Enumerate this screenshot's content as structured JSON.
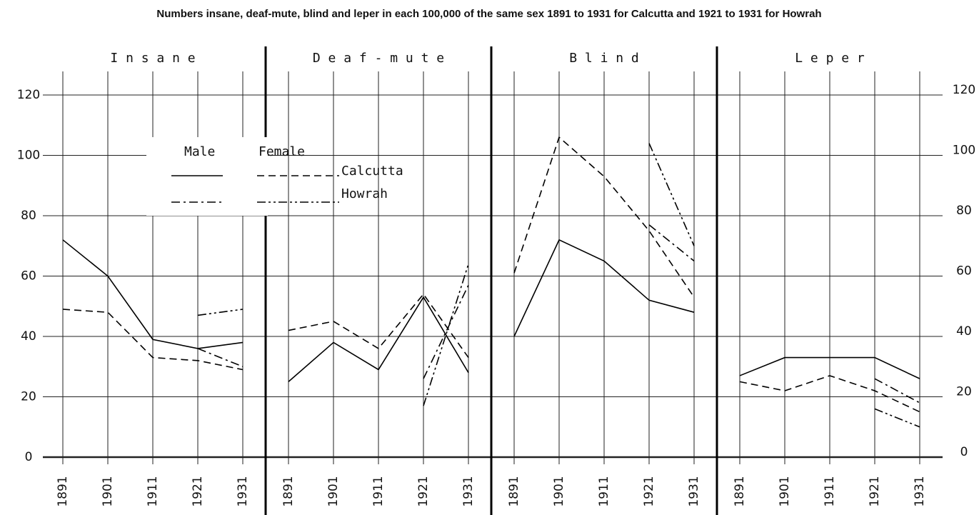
{
  "chart_data": {
    "type": "line",
    "title": "Numbers insane, deaf-mute, blind and leper in each 100,000 of the same sex 1891 to 1931 for Calcutta and 1921 to 1931 for Howrah",
    "categories": [
      "1891",
      "1901",
      "1911",
      "1921",
      "1931"
    ],
    "ylim": [
      0,
      129
    ],
    "yticks": [
      0,
      20,
      40,
      60,
      80,
      100,
      120
    ],
    "color": "#000000",
    "grid": true,
    "legend": {
      "headers": [
        "Male",
        "Female"
      ],
      "rows": [
        {
          "label": "Calcutta",
          "dashes": [
            "solid",
            "dashed"
          ]
        },
        {
          "label": "Howrah",
          "dashes": [
            "dashdot",
            "dashdotdot"
          ]
        }
      ]
    },
    "panels": [
      {
        "title": "I n s a n e",
        "series": [
          {
            "dash": "solid",
            "values": [
              72,
              60,
              39,
              36,
              38
            ]
          },
          {
            "dash": "dashed",
            "values": [
              49,
              48,
              33,
              32,
              29
            ]
          },
          {
            "dash": "dashdot",
            "values": [
              null,
              null,
              null,
              36,
              30
            ]
          },
          {
            "dash": "dashdotdot",
            "values": [
              null,
              null,
              null,
              47,
              49
            ]
          }
        ]
      },
      {
        "title": "D e a f - m u t e",
        "series": [
          {
            "dash": "solid",
            "values": [
              25,
              38,
              29,
              53,
              28
            ]
          },
          {
            "dash": "dashed",
            "values": [
              42,
              45,
              36,
              54,
              33
            ]
          },
          {
            "dash": "dashdot",
            "values": [
              null,
              null,
              null,
              26,
              57
            ]
          },
          {
            "dash": "dashdotdot",
            "values": [
              null,
              null,
              null,
              17,
              64
            ]
          }
        ]
      },
      {
        "title": "B l i n d",
        "series": [
          {
            "dash": "solid",
            "values": [
              40,
              72,
              65,
              52,
              48
            ]
          },
          {
            "dash": "dashed",
            "values": [
              61,
              106,
              93,
              75,
              53
            ]
          },
          {
            "dash": "dashdot",
            "values": [
              null,
              null,
              null,
              77,
              65
            ]
          },
          {
            "dash": "dashdotdot",
            "values": [
              null,
              null,
              null,
              104,
              70
            ]
          }
        ]
      },
      {
        "title": "L e p e r",
        "series": [
          {
            "dash": "solid",
            "values": [
              27,
              33,
              33,
              33,
              26
            ]
          },
          {
            "dash": "dashed",
            "values": [
              25,
              22,
              27,
              22,
              15
            ]
          },
          {
            "dash": "dashdot",
            "values": [
              null,
              null,
              null,
              26,
              18
            ]
          },
          {
            "dash": "dashdotdot",
            "values": [
              null,
              null,
              null,
              16,
              10
            ]
          }
        ]
      }
    ]
  }
}
